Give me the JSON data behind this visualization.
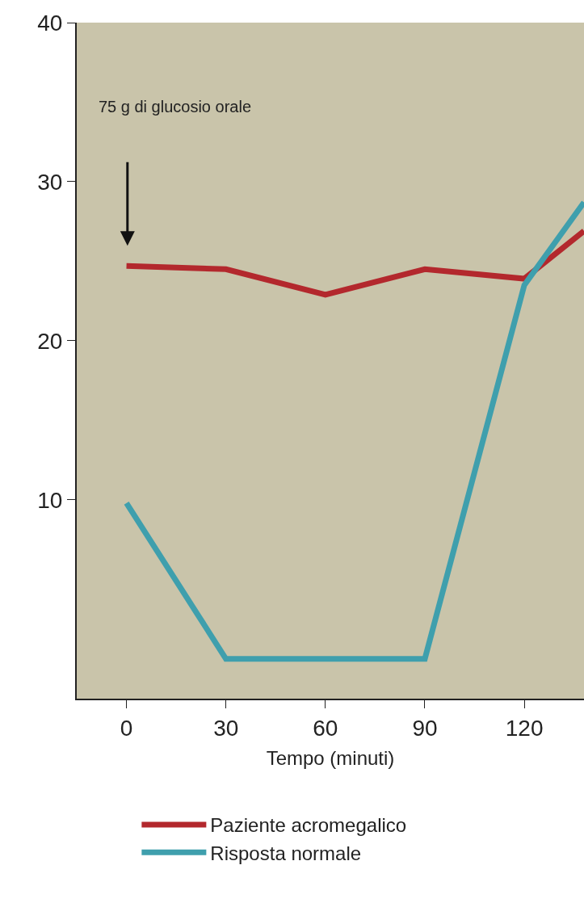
{
  "chart_data": {
    "type": "line",
    "xlabel": "Tempo (minuti)",
    "series": [
      {
        "name": "Paziente acromegalico",
        "color": "#b3282d",
        "x": [
          0,
          30,
          60,
          90,
          120,
          138
        ],
        "values": [
          24.7,
          24.5,
          22.9,
          24.5,
          23.9,
          26.9
        ]
      },
      {
        "name": "Risposta normale",
        "color": "#3f9fad",
        "x": [
          0,
          30,
          60,
          90,
          120,
          138
        ],
        "values": [
          9.8,
          0,
          0,
          0,
          23.5,
          28.7
        ]
      }
    ],
    "xlim": [
      -15,
      138
    ],
    "xticks": [
      0,
      30,
      60,
      90,
      120
    ],
    "ylim": [
      -2.5,
      40
    ],
    "yticks": [
      10,
      20,
      30,
      40
    ],
    "annotations": [
      "75 g di glucosio orale"
    ],
    "grid": false,
    "legend": "bottom",
    "marker": "none",
    "line_style": "solid"
  }
}
